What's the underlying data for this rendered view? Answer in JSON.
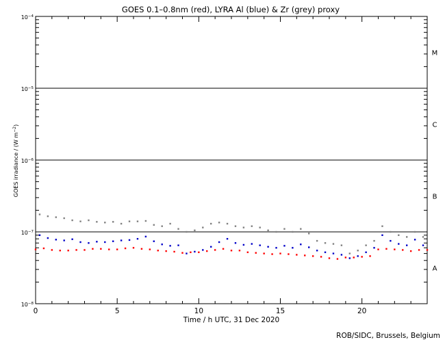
{
  "chart_data": {
    "type": "scatter",
    "title": "GOES 0.1–0.8nm (red), LYRA Al (blue) & Zr (grey) proxy",
    "xlabel": "Time / h UTC, 31 Dec 2020",
    "ylabel_main": "GOES irradiance / (W m",
    "ylabel_sup": "−2",
    "ylabel_close": ")",
    "credit": "ROB/SIDC, Brussels, Belgium",
    "xlim": [
      0,
      24
    ],
    "ylim": [
      1e-08,
      0.0001
    ],
    "y_scale": "log",
    "x_ticks": [
      {
        "value": 0,
        "label": "0"
      },
      {
        "value": 5,
        "label": "5"
      },
      {
        "value": 10,
        "label": "10"
      },
      {
        "value": 15,
        "label": "15"
      },
      {
        "value": 20,
        "label": "20"
      }
    ],
    "y_ticks": [
      {
        "value": 1e-08,
        "base": "10",
        "exp": "−8"
      },
      {
        "value": 1e-07,
        "base": "10",
        "exp": "−7"
      },
      {
        "value": 1e-06,
        "base": "10",
        "exp": "−6"
      },
      {
        "value": 1e-05,
        "base": "10",
        "exp": "−5"
      },
      {
        "value": 0.0001,
        "base": "10",
        "exp": "−4"
      }
    ],
    "flare_class_lines": [
      1e-07,
      1e-06,
      1e-05
    ],
    "flare_class_labels": [
      {
        "label": "A",
        "value": 3.16e-08
      },
      {
        "label": "B",
        "value": 3.16e-07
      },
      {
        "label": "C",
        "value": 3.16e-06
      },
      {
        "label": "M",
        "value": 3.16e-05
      }
    ],
    "series": [
      {
        "name": "GOES 0.1–0.8nm",
        "color": "#ff0000",
        "x": [
          0,
          0.5,
          1,
          1.5,
          2,
          2.5,
          3,
          3.5,
          4,
          4.5,
          5,
          5.5,
          6,
          6.5,
          7,
          7.5,
          8,
          8.5,
          9,
          9.5,
          10,
          10.5,
          11,
          11.5,
          12,
          12.5,
          13,
          13.5,
          14,
          14.5,
          15,
          15.5,
          16,
          16.5,
          17,
          17.5,
          18,
          18.5,
          19,
          19.5,
          20,
          20.5,
          21,
          21.5,
          22,
          22.5,
          23,
          23.5,
          24
        ],
        "y": [
          5.7e-08,
          5.9e-08,
          5.6e-08,
          5.5e-08,
          5.5e-08,
          5.6e-08,
          5.6e-08,
          5.8e-08,
          5.8e-08,
          5.7e-08,
          5.7e-08,
          5.9e-08,
          6e-08,
          5.8e-08,
          5.7e-08,
          5.5e-08,
          5.4e-08,
          5.3e-08,
          5.1e-08,
          5.2e-08,
          5.2e-08,
          5.4e-08,
          5.6e-08,
          5.8e-08,
          5.5e-08,
          5.5e-08,
          5.2e-08,
          5.1e-08,
          5e-08,
          4.9e-08,
          5e-08,
          4.9e-08,
          4.8e-08,
          4.7e-08,
          4.6e-08,
          4.5e-08,
          4.3e-08,
          4.2e-08,
          4.4e-08,
          4.4e-08,
          4.5e-08,
          4.6e-08,
          5.7e-08,
          5.8e-08,
          5.7e-08,
          5.6e-08,
          5.4e-08,
          5.6e-08,
          5.6e-08
        ]
      },
      {
        "name": "LYRA Al proxy",
        "color": "#0000c8",
        "x": [
          0.25,
          0.75,
          1.25,
          1.75,
          2.25,
          2.75,
          3.25,
          3.75,
          4.25,
          4.75,
          5.25,
          5.75,
          6.25,
          6.75,
          7.25,
          7.75,
          8.25,
          8.75,
          9.25,
          9.75,
          10.25,
          10.75,
          11.25,
          11.75,
          12.25,
          12.75,
          13.25,
          13.75,
          14.25,
          14.75,
          15.25,
          15.75,
          16.25,
          16.75,
          17.25,
          17.75,
          18.25,
          18.75,
          19.25,
          19.75,
          20.25,
          20.75,
          21.25,
          21.75,
          22.25,
          22.75,
          23.25,
          23.75
        ],
        "y": [
          9e-08,
          8.2e-08,
          7.8e-08,
          7.6e-08,
          7.9e-08,
          7.2e-08,
          7e-08,
          7.3e-08,
          7.2e-08,
          7.4e-08,
          7.6e-08,
          7.7e-08,
          8e-08,
          8.6e-08,
          7.4e-08,
          6.7e-08,
          6.4e-08,
          6.5e-08,
          5e-08,
          5.3e-08,
          5.6e-08,
          6.2e-08,
          7.2e-08,
          8e-08,
          7e-08,
          6.6e-08,
          6.8e-08,
          6.5e-08,
          6.2e-08,
          6e-08,
          6.4e-08,
          6e-08,
          6.7e-08,
          6.1e-08,
          5.5e-08,
          5.2e-08,
          5e-08,
          4.8e-08,
          4.3e-08,
          4.6e-08,
          5.2e-08,
          6e-08,
          9e-08,
          7.5e-08,
          6.8e-08,
          6.5e-08,
          7.8e-08,
          6.5e-08
        ]
      },
      {
        "name": "LYRA Zr proxy",
        "color": "#808080",
        "x": [
          0.25,
          0.75,
          1.25,
          1.75,
          2.25,
          2.75,
          3.25,
          3.75,
          4.25,
          4.75,
          5.25,
          5.75,
          6.25,
          6.75,
          7.25,
          7.75,
          8.25,
          8.75,
          9.25,
          9.75,
          10.25,
          10.75,
          11.25,
          11.75,
          12.25,
          12.75,
          13.25,
          13.75,
          14.25,
          14.75,
          15.25,
          15.75,
          16.25,
          16.75,
          17.25,
          17.75,
          18.25,
          18.75,
          19.25,
          19.75,
          20.25,
          20.75,
          21.25,
          21.75,
          22.25,
          22.75,
          23.25,
          23.75
        ],
        "y": [
          1.75e-07,
          1.65e-07,
          1.6e-07,
          1.55e-07,
          1.45e-07,
          1.4e-07,
          1.45e-07,
          1.38e-07,
          1.35e-07,
          1.38e-07,
          1.3e-07,
          1.4e-07,
          1.4e-07,
          1.42e-07,
          1.25e-07,
          1.2e-07,
          1.3e-07,
          1.1e-07,
          1e-07,
          1.05e-07,
          1.15e-07,
          1.3e-07,
          1.35e-07,
          1.3e-07,
          1.2e-07,
          1.15e-07,
          1.2e-07,
          1.15e-07,
          1.05e-07,
          1e-07,
          1.1e-07,
          1e-07,
          1.1e-07,
          9.5e-08,
          7.5e-08,
          7e-08,
          6.8e-08,
          6.5e-08,
          5e-08,
          5.5e-08,
          6.5e-08,
          7.5e-08,
          1.2e-07,
          1e-07,
          9e-08,
          8.5e-08,
          1e-07,
          8.5e-08
        ]
      }
    ]
  }
}
